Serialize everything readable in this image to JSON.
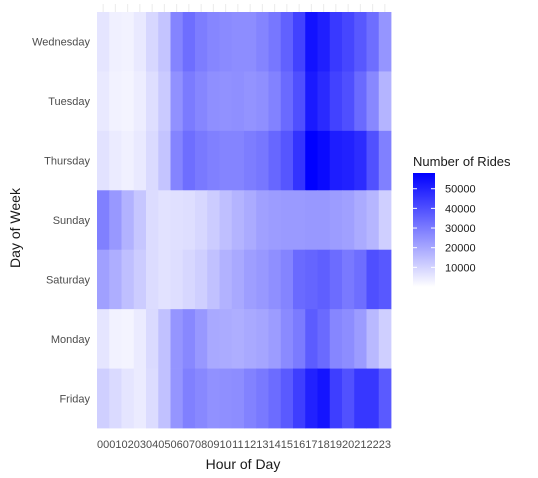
{
  "chart_data": {
    "type": "heatmap",
    "x_label": "Hour of Day",
    "y_label": "Day of Week",
    "x_categories": [
      "00",
      "01",
      "02",
      "03",
      "04",
      "05",
      "06",
      "07",
      "08",
      "09",
      "10",
      "11",
      "12",
      "13",
      "14",
      "15",
      "16",
      "17",
      "18",
      "19",
      "20",
      "21",
      "22",
      "23"
    ],
    "y_categories": [
      "Wednesday",
      "Tuesday",
      "Thursday",
      "Sunday",
      "Saturday",
      "Monday",
      "Friday"
    ],
    "values": [
      [
        6000,
        3500,
        3000,
        5000,
        9000,
        13500,
        28000,
        33000,
        29500,
        27500,
        26500,
        26000,
        26000,
        28000,
        31000,
        36000,
        43000,
        54000,
        51000,
        45000,
        42000,
        38000,
        33000,
        24000
      ],
      [
        5000,
        3000,
        2500,
        4000,
        7500,
        12000,
        25000,
        30000,
        27500,
        25500,
        25000,
        25500,
        24500,
        25500,
        28500,
        34000,
        40000,
        52000,
        48500,
        43000,
        40000,
        34000,
        27000,
        17000
      ],
      [
        6500,
        4500,
        3500,
        5000,
        8500,
        13500,
        28000,
        33000,
        30500,
        29000,
        28000,
        28000,
        29500,
        31000,
        34500,
        38500,
        46500,
        58000,
        56000,
        51500,
        50500,
        48000,
        39500,
        29000
      ],
      [
        29000,
        23500,
        17500,
        13000,
        8000,
        6500,
        7000,
        7500,
        9000,
        11500,
        14500,
        17000,
        19000,
        21500,
        22500,
        23000,
        23000,
        23500,
        23500,
        22500,
        21500,
        19000,
        16500,
        11000
      ],
      [
        21500,
        18500,
        14500,
        11500,
        8000,
        6500,
        7500,
        9000,
        11000,
        14000,
        17500,
        19500,
        22000,
        23500,
        25500,
        28000,
        34000,
        35000,
        36500,
        33500,
        30500,
        33000,
        40000,
        38000
      ],
      [
        6000,
        3000,
        2500,
        4500,
        8500,
        14000,
        24000,
        27000,
        23500,
        19500,
        19000,
        18500,
        19500,
        20500,
        22500,
        26500,
        30000,
        37000,
        34000,
        27500,
        26000,
        22500,
        16000,
        11000
      ],
      [
        11000,
        8500,
        6000,
        4500,
        8000,
        14000,
        24000,
        29000,
        27000,
        25000,
        25500,
        26000,
        28500,
        30500,
        33500,
        37500,
        44000,
        50500,
        53500,
        44000,
        39500,
        45500,
        45500,
        37500
      ]
    ],
    "zlim": [
      0,
      58000
    ],
    "color_low": "#ffffff",
    "color_high": "#0000ff",
    "legend": {
      "title": "Number of Rides",
      "ticks": [
        10000,
        20000,
        30000,
        40000,
        50000
      ],
      "tick_labels": [
        "10000",
        "20000",
        "30000",
        "40000",
        "50000"
      ],
      "position": "right"
    }
  }
}
